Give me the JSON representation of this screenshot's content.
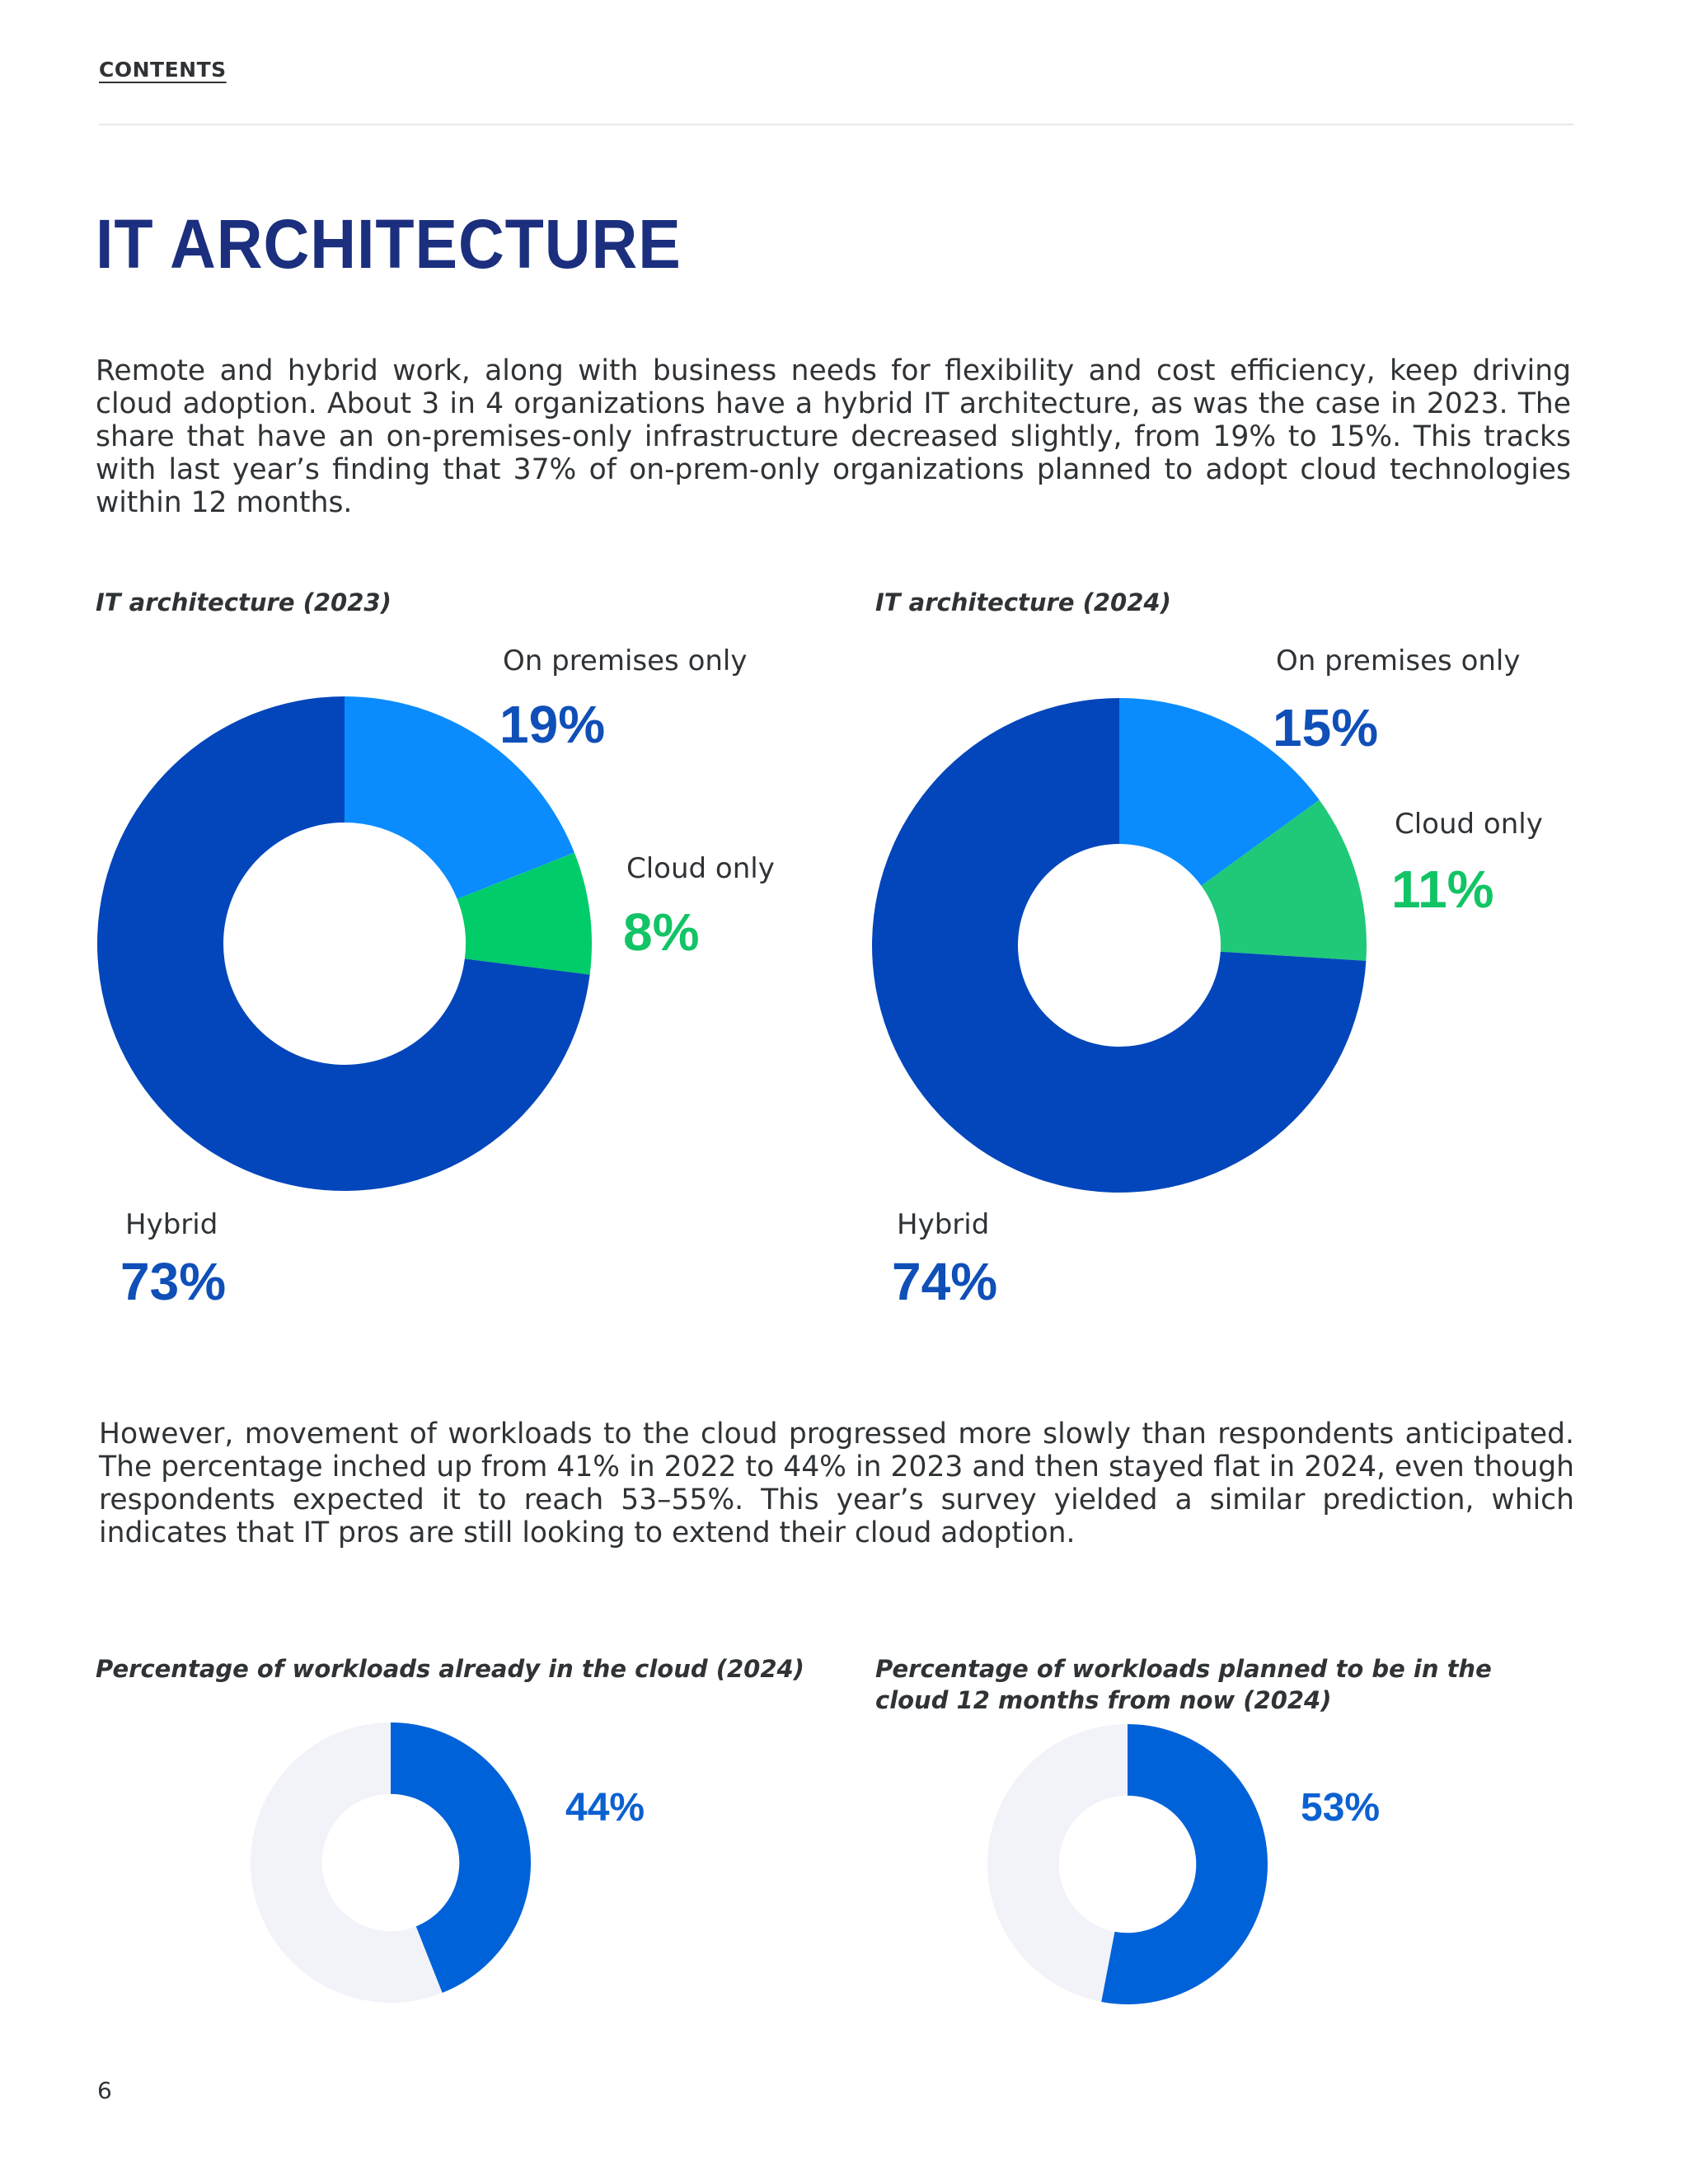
{
  "header": {
    "contents_link": "CONTENTS"
  },
  "page_title": "IT ARCHITECTURE",
  "intro_paragraph": "Remote and hybrid work, along with business needs for flexibility and cost efficiency, keep driving cloud adoption. About 3 in 4 organizations have a hybrid IT architecture, as was the case in 2023. The share that have an on-premises-only infrastructure decreased slightly, from 19% to 15%. This tracks with last year’s finding that 37% of on-prem-only organizations planned to adopt cloud technologies within 12 months.",
  "second_paragraph": "However, movement of workloads to the cloud progressed more slowly than respondents anticipated. The percentage inched up from 41% in 2022 to 44% in 2023 and then stayed flat in 2024, even though respondents expected it to reach 53–55%. This year’s survey yielded a similar prediction, which indicates that IT pros are still looking to extend their cloud adoption.",
  "page_number": "6",
  "colors": {
    "on_premises": "#0a8cff",
    "cloud": "#00cc6a",
    "cloud_2024": "#1fc978",
    "hybrid": "#0346bb",
    "workload_fill": "#0062d8",
    "workload_rest": "#f2f3f8",
    "pct_blue": "#0f4fb8",
    "pct_green": "#12c465",
    "pct_workload": "#0c61d1"
  },
  "chart_data": [
    {
      "type": "pie",
      "title": "IT architecture (2023)",
      "categories": [
        "On premises only",
        "Cloud only",
        "Hybrid"
      ],
      "values": [
        19,
        8,
        73
      ],
      "value_labels": [
        "19%",
        "8%",
        "73%"
      ]
    },
    {
      "type": "pie",
      "title": "IT architecture (2024)",
      "categories": [
        "On premises only",
        "Cloud only",
        "Hybrid"
      ],
      "values": [
        15,
        11,
        74
      ],
      "value_labels": [
        "15%",
        "11%",
        "74%"
      ]
    },
    {
      "type": "pie",
      "title": "Percentage of workloads already in the cloud (2024)",
      "values": [
        44,
        56
      ],
      "value_labels": [
        "44%"
      ]
    },
    {
      "type": "pie",
      "title": "Percentage of workloads planned to be in the cloud 12 months from now (2024)",
      "values": [
        53,
        47
      ],
      "value_labels": [
        "53%"
      ]
    }
  ]
}
